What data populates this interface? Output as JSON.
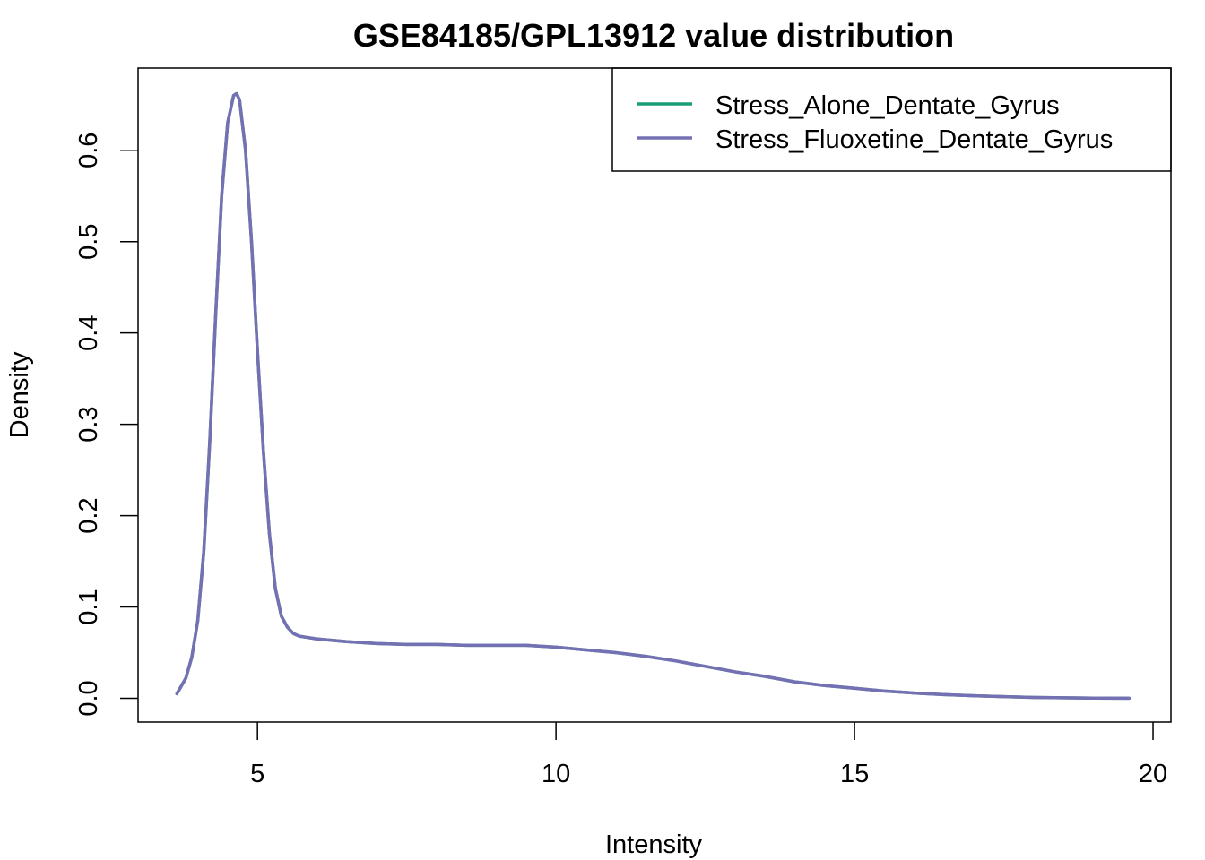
{
  "chart_data": {
    "type": "line",
    "title": "GSE84185/GPL13912 value distribution",
    "xlabel": "Intensity",
    "ylabel": "Density",
    "xlim": [
      3.0,
      20.3
    ],
    "ylim": [
      -0.026,
      0.69
    ],
    "x_ticks": [
      5,
      10,
      15,
      20
    ],
    "x_tick_labels": [
      "5",
      "10",
      "15",
      "20"
    ],
    "y_ticks": [
      0.0,
      0.1,
      0.2,
      0.3,
      0.4,
      0.5,
      0.6
    ],
    "y_tick_labels": [
      "0.0",
      "0.1",
      "0.2",
      "0.3",
      "0.4",
      "0.5",
      "0.6"
    ],
    "grid": false,
    "legend_position": "top-right",
    "series": [
      {
        "name": "Stress_Alone_Dentate_Gyrus",
        "color": "#1b9e77",
        "x": [
          3.65,
          3.8,
          3.9,
          4.0,
          4.1,
          4.2,
          4.3,
          4.4,
          4.5,
          4.6,
          4.65,
          4.7,
          4.8,
          4.9,
          5.0,
          5.1,
          5.2,
          5.3,
          5.4,
          5.5,
          5.6,
          5.7,
          5.8,
          6.0,
          6.5,
          7.0,
          7.5,
          8.0,
          8.5,
          9.0,
          9.5,
          10.0,
          10.5,
          11.0,
          11.5,
          12.0,
          12.5,
          13.0,
          13.5,
          14.0,
          14.5,
          15.0,
          15.5,
          16.0,
          16.5,
          17.0,
          17.5,
          18.0,
          18.5,
          19.0,
          19.6
        ],
        "y": [
          0.005,
          0.022,
          0.045,
          0.085,
          0.16,
          0.28,
          0.42,
          0.55,
          0.63,
          0.66,
          0.662,
          0.655,
          0.6,
          0.5,
          0.38,
          0.27,
          0.18,
          0.12,
          0.09,
          0.078,
          0.071,
          0.068,
          0.067,
          0.065,
          0.062,
          0.06,
          0.059,
          0.059,
          0.058,
          0.058,
          0.058,
          0.056,
          0.053,
          0.05,
          0.046,
          0.041,
          0.035,
          0.029,
          0.024,
          0.018,
          0.014,
          0.011,
          0.008,
          0.0058,
          0.004,
          0.0028,
          0.0018,
          0.001,
          0.0006,
          0.0003,
          0.0001
        ]
      },
      {
        "name": "Stress_Fluoxetine_Dentate_Gyrus",
        "color": "#7570b3",
        "x": [
          3.65,
          3.8,
          3.9,
          4.0,
          4.1,
          4.2,
          4.3,
          4.4,
          4.5,
          4.6,
          4.65,
          4.7,
          4.8,
          4.9,
          5.0,
          5.1,
          5.2,
          5.3,
          5.4,
          5.5,
          5.6,
          5.7,
          5.8,
          6.0,
          6.5,
          7.0,
          7.5,
          8.0,
          8.5,
          9.0,
          9.5,
          10.0,
          10.5,
          11.0,
          11.5,
          12.0,
          12.5,
          13.0,
          13.5,
          14.0,
          14.5,
          15.0,
          15.5,
          16.0,
          16.5,
          17.0,
          17.5,
          18.0,
          18.5,
          19.0,
          19.6
        ],
        "y": [
          0.005,
          0.022,
          0.045,
          0.085,
          0.16,
          0.28,
          0.42,
          0.55,
          0.63,
          0.66,
          0.662,
          0.655,
          0.6,
          0.5,
          0.38,
          0.27,
          0.18,
          0.12,
          0.09,
          0.078,
          0.071,
          0.068,
          0.067,
          0.065,
          0.062,
          0.06,
          0.059,
          0.059,
          0.058,
          0.058,
          0.058,
          0.056,
          0.053,
          0.05,
          0.046,
          0.041,
          0.035,
          0.029,
          0.024,
          0.018,
          0.014,
          0.011,
          0.008,
          0.0058,
          0.004,
          0.0028,
          0.0018,
          0.001,
          0.0006,
          0.0003,
          0.0001
        ]
      }
    ]
  }
}
